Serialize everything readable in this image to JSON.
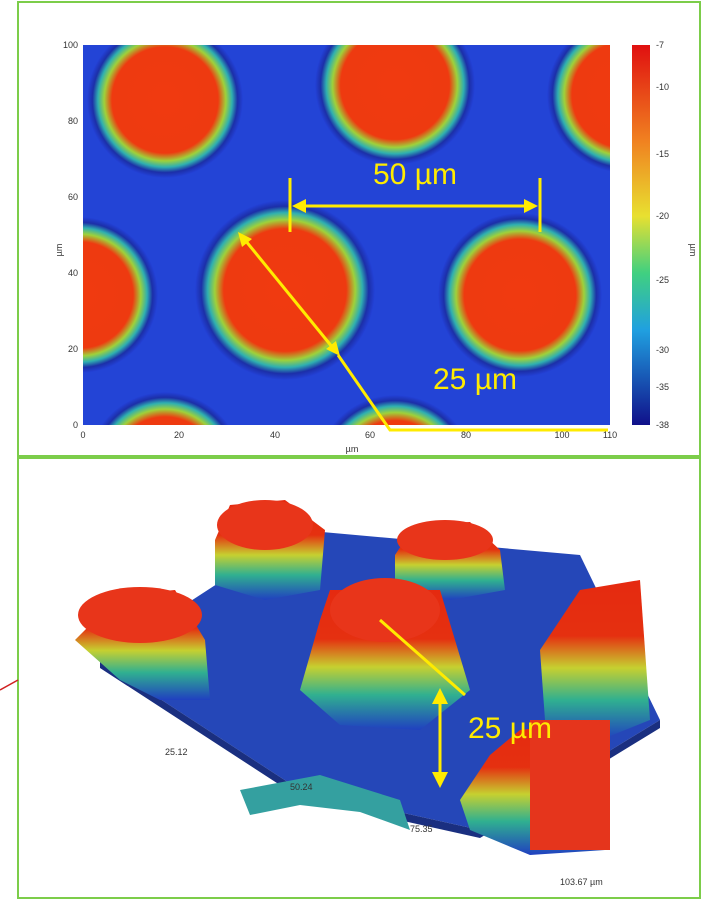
{
  "top_panel": {
    "x_axis": {
      "label": "µm",
      "ticks": [
        "0",
        "20",
        "40",
        "60",
        "80",
        "100",
        "110"
      ]
    },
    "y_axis": {
      "label": "µm",
      "ticks": [
        "0",
        "20",
        "40",
        "60",
        "80",
        "100"
      ]
    },
    "colorbar": {
      "label": "µm",
      "ticks": [
        "-7",
        "-10",
        "-15",
        "-20",
        "-25",
        "-30",
        "-35",
        "-38"
      ]
    },
    "annotations": {
      "width": "50 µm",
      "diameter": "25 µm"
    }
  },
  "bottom_panel": {
    "axis_labels": [
      "25.12",
      "50.24",
      "75.35",
      "103.67 µm"
    ],
    "annotations": {
      "height": "25 µm"
    }
  }
}
